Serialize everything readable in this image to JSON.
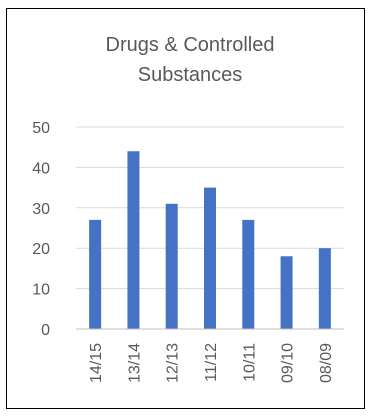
{
  "chart_data": {
    "type": "bar",
    "title_lines": [
      "Drugs & Controlled",
      "Substances"
    ],
    "categories": [
      "14/15",
      "13/14",
      "12/13",
      "11/12",
      "10/11",
      "09/10",
      "08/09"
    ],
    "values": [
      27,
      44,
      31,
      35,
      27,
      18,
      20
    ],
    "ylim": [
      0,
      50
    ],
    "yticks": [
      0,
      10,
      20,
      30,
      40,
      50
    ],
    "grid": true,
    "legend": "none",
    "bar_color": "#4472c4",
    "grid_color": "#d9d9d9",
    "axis_color": "#bfbfbf",
    "text_color": "#595959"
  }
}
